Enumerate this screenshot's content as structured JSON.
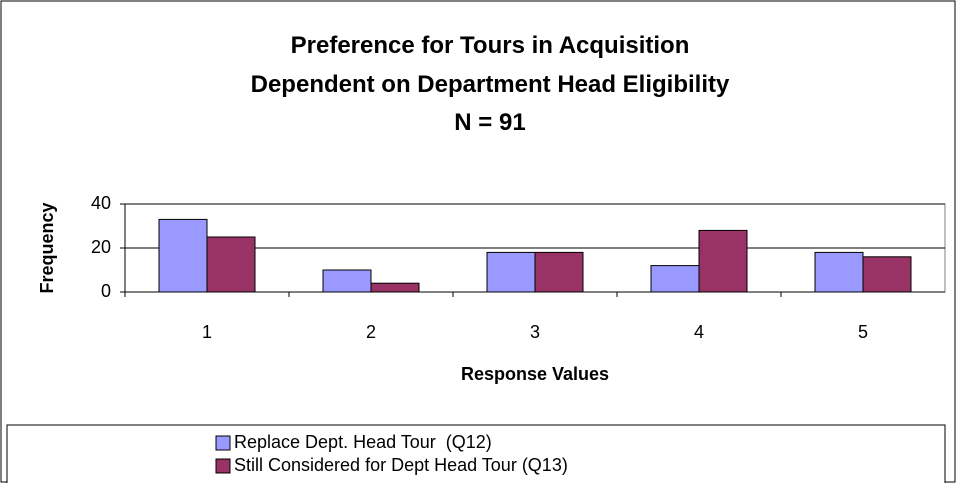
{
  "chart_data": {
    "type": "bar",
    "title": "Preference for Tours in Acquisition Dependent on Department Head Eligibility",
    "subtitle": "N = 91",
    "x_label": "Response Values",
    "y_label": "Frequency",
    "categories": [
      "1",
      "2",
      "3",
      "4",
      "5"
    ],
    "series": [
      {
        "name": "Replace Dept. Head Tour  (Q12)",
        "color": "#9999ff",
        "values": [
          33,
          10,
          18,
          12,
          18
        ]
      },
      {
        "name": "Still Considered for Dept Head Tour (Q13)",
        "color": "#993366",
        "values": [
          25,
          4,
          18,
          28,
          16
        ]
      }
    ],
    "ylim": [
      0,
      40
    ],
    "yticks": [
      0,
      20,
      40
    ],
    "grid": true,
    "legend": "bottom"
  }
}
